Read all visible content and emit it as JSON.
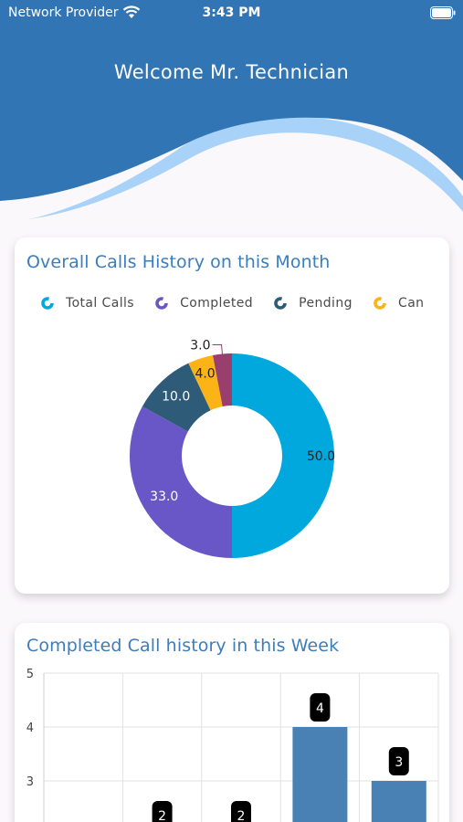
{
  "status_bar": {
    "provider": "Network Provider",
    "time": "3:43 PM"
  },
  "header": {
    "welcome": "Welcome Mr. Technician"
  },
  "colors": {
    "header_blue": "#3275b5",
    "wave_light": "#a9d2f8",
    "total": "#00a8de",
    "completed": "#6a57c7",
    "pending": "#2d5b78",
    "cancelled": "#fcb316",
    "other": "#9a3e6d",
    "bar": "#4a81b4",
    "title": "#3b7dbd"
  },
  "monthly_card": {
    "title": "Overall Calls History on this Month",
    "legend": [
      {
        "label": "Total Calls",
        "color": "#00a8de"
      },
      {
        "label": "Completed",
        "color": "#6a57c7"
      },
      {
        "label": "Pending",
        "color": "#2d5b78"
      },
      {
        "label": "Can",
        "color": "#fcb316"
      }
    ]
  },
  "weekly_card": {
    "title": "Completed Call history in this Week"
  },
  "chart_data": [
    {
      "type": "pie",
      "title": "Overall Calls History on this Month",
      "slices": [
        {
          "label": "Total Calls",
          "value": 50.0,
          "display": "50.0",
          "color": "#00a8de"
        },
        {
          "label": "Completed",
          "value": 33.0,
          "display": "33.0",
          "color": "#6a57c7"
        },
        {
          "label": "Pending",
          "value": 10.0,
          "display": "10.0",
          "color": "#2d5b78"
        },
        {
          "label": "Cancelled",
          "value": 4.0,
          "display": "4.0",
          "color": "#fcb316"
        },
        {
          "label": "",
          "value": 3.0,
          "display": "3.0",
          "color": "#9a3e6d"
        }
      ],
      "legend_position": "top"
    },
    {
      "type": "bar",
      "title": "Completed Call history in this Week",
      "ylim": [
        0,
        5
      ],
      "y_ticks": [
        "3",
        "4",
        "5"
      ],
      "values": [
        null,
        2,
        2,
        4,
        3
      ],
      "grid": true
    }
  ]
}
